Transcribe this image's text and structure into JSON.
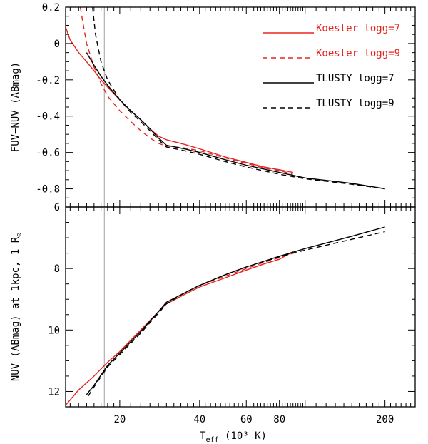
{
  "chart_data": [
    {
      "type": "line",
      "panel": "top",
      "ylabel": "FUV−NUV (ABmag)",
      "xscale": "log",
      "xlim": [
        12.5,
        260
      ],
      "ylim": [
        -0.9,
        0.2
      ],
      "yinverted": false,
      "yticks": [
        0.2,
        0,
        -0.2,
        -0.4,
        -0.6,
        -0.8
      ],
      "ytick_labels": [
        "0.2",
        "0",
        "-0.2",
        "-0.4",
        "-0.6",
        "-0.8"
      ],
      "legend_position": "top-right",
      "series": [
        {
          "name": "Koester logg=7",
          "color": "#e8231e",
          "dash": "solid",
          "x": [
            12.5,
            13,
            14,
            15,
            16,
            17,
            18,
            20,
            22,
            24,
            26,
            28,
            30,
            35,
            40,
            50,
            60,
            70,
            80,
            90
          ],
          "y": [
            0.09,
            0.02,
            -0.05,
            -0.1,
            -0.15,
            -0.2,
            -0.24,
            -0.31,
            -0.37,
            -0.42,
            -0.47,
            -0.51,
            -0.53,
            -0.555,
            -0.58,
            -0.625,
            -0.655,
            -0.68,
            -0.695,
            -0.71
          ]
        },
        {
          "name": "Koester logg=9",
          "color": "#e8231e",
          "dash": "dashed",
          "x": [
            14.2,
            14.5,
            15,
            16,
            17,
            18,
            20,
            22,
            24,
            26,
            28,
            30,
            35,
            40,
            50,
            60,
            70,
            80,
            90
          ],
          "y": [
            0.2,
            0.12,
            0.0,
            -0.13,
            -0.22,
            -0.29,
            -0.37,
            -0.43,
            -0.48,
            -0.52,
            -0.55,
            -0.565,
            -0.575,
            -0.59,
            -0.63,
            -0.66,
            -0.685,
            -0.7,
            -0.72
          ]
        },
        {
          "name": "TLUSTY logg=7",
          "color": "#000000",
          "dash": "solid",
          "x": [
            15,
            16,
            17,
            18,
            20,
            22,
            24,
            26,
            28,
            30,
            35,
            40,
            50,
            60,
            80,
            100,
            150,
            200
          ],
          "y": [
            -0.05,
            -0.12,
            -0.18,
            -0.23,
            -0.31,
            -0.37,
            -0.42,
            -0.47,
            -0.52,
            -0.56,
            -0.58,
            -0.6,
            -0.64,
            -0.67,
            -0.71,
            -0.74,
            -0.77,
            -0.8
          ]
        },
        {
          "name": "TLUSTY logg=9",
          "color": "#000000",
          "dash": "dashed",
          "x": [
            15.8,
            16.2,
            17,
            18,
            20,
            22,
            24,
            26,
            28,
            30,
            35,
            40,
            50,
            60,
            80,
            100,
            150,
            200
          ],
          "y": [
            0.2,
            0.05,
            -0.1,
            -0.2,
            -0.31,
            -0.38,
            -0.43,
            -0.48,
            -0.53,
            -0.57,
            -0.59,
            -0.61,
            -0.65,
            -0.68,
            -0.72,
            -0.745,
            -0.775,
            -0.8
          ]
        }
      ]
    },
    {
      "type": "line",
      "panel": "bottom",
      "ylabel": "NUV (ABmag) at 1kpc, 1 R",
      "ylabel_sub": "⊙",
      "xlabel": "T",
      "xlabel_sub": "eff",
      "xlabel_rest": " (10³ K)",
      "xscale": "log",
      "xlim": [
        12.5,
        260
      ],
      "ylim": [
        6,
        12.5
      ],
      "yinverted": true,
      "yticks": [
        6,
        8,
        10,
        12
      ],
      "ytick_labels": [
        "6",
        "8",
        "10",
        "12"
      ],
      "xticks": [
        20,
        40,
        60,
        80,
        200
      ],
      "xtick_labels": [
        "20",
        "40",
        "60",
        "80",
        "200"
      ],
      "series": [
        {
          "name": "Koester logg=7",
          "color": "#e8231e",
          "dash": "solid",
          "x": [
            12.5,
            14,
            16,
            18,
            20,
            24,
            28,
            30,
            35,
            40,
            50,
            60,
            70,
            80,
            90
          ],
          "y": [
            12.45,
            11.95,
            11.5,
            11.05,
            10.7,
            10.0,
            9.4,
            9.15,
            8.85,
            8.6,
            8.3,
            8.05,
            7.85,
            7.7,
            7.45
          ]
        },
        {
          "name": "Koester logg=9",
          "color": "#e8231e",
          "dash": "dashed",
          "x": [
            24,
            28,
            30,
            35,
            40,
            50,
            60,
            70,
            80,
            90
          ],
          "y": [
            10.0,
            9.4,
            9.1,
            8.8,
            8.55,
            8.25,
            8.0,
            7.8,
            7.65,
            7.5
          ]
        },
        {
          "name": "TLUSTY logg=7",
          "color": "#000000",
          "dash": "solid",
          "x": [
            15,
            16,
            18,
            20,
            24,
            28,
            30,
            35,
            40,
            50,
            60,
            80,
            100,
            150,
            200
          ],
          "y": [
            12.1,
            11.8,
            11.15,
            10.75,
            10.05,
            9.4,
            9.1,
            8.8,
            8.55,
            8.2,
            7.95,
            7.6,
            7.35,
            6.95,
            6.65
          ]
        },
        {
          "name": "TLUSTY logg=9",
          "color": "#000000",
          "dash": "dashed",
          "x": [
            15.2,
            16,
            18,
            20,
            24,
            28,
            30,
            35,
            40,
            50,
            60,
            80,
            100,
            150,
            200
          ],
          "y": [
            12.15,
            11.85,
            11.2,
            10.8,
            10.1,
            9.45,
            9.15,
            8.8,
            8.55,
            8.2,
            7.95,
            7.62,
            7.4,
            7.05,
            6.8
          ]
        }
      ]
    }
  ],
  "marker_line_x": 17.5,
  "legend": [
    {
      "label": "Koester logg=7",
      "color": "#e8231e",
      "dash": "solid"
    },
    {
      "label": "Koester logg=9",
      "color": "#e8231e",
      "dash": "dashed"
    },
    {
      "label": "TLUSTY logg=7",
      "color": "#000000",
      "dash": "solid"
    },
    {
      "label": "TLUSTY logg=9",
      "color": "#000000",
      "dash": "dashed"
    }
  ]
}
